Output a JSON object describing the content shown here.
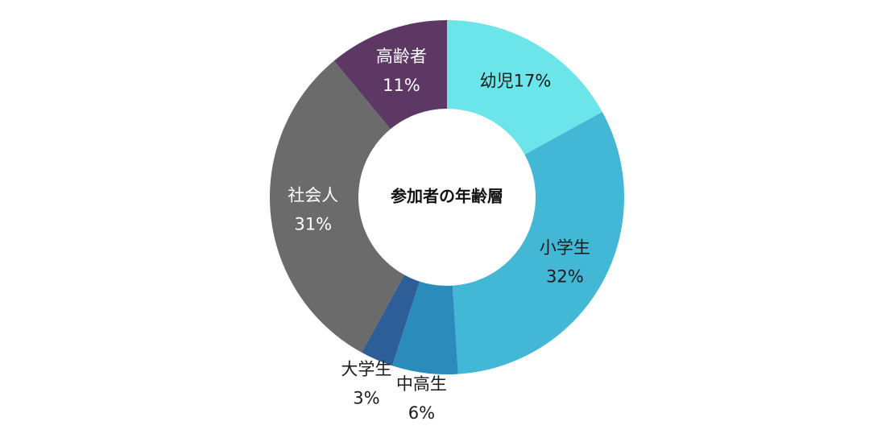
{
  "chart_data": {
    "type": "pie",
    "donut": true,
    "title": "参加者の年齢層",
    "unit": "%",
    "slices": [
      {
        "name": "幼児",
        "value": 17,
        "label": "幼児17%",
        "color": "#6BE5E9",
        "label_color": "#1a1a1a",
        "layout": "single"
      },
      {
        "name": "小学生",
        "value": 32,
        "label": "32%",
        "color": "#42B7D6",
        "label_color": "#1a1a1a",
        "layout": "double"
      },
      {
        "name": "中高生",
        "value": 6,
        "label": "6%",
        "color": "#2B8CBC",
        "label_color": "#1a1a1a",
        "layout": "outside"
      },
      {
        "name": "大学生",
        "value": 3,
        "label": "3%",
        "color": "#2E5E98",
        "label_color": "#1a1a1a",
        "layout": "outside"
      },
      {
        "name": "社会人",
        "value": 31,
        "label": "31%",
        "color": "#6B6B6B",
        "label_color": "#ffffff",
        "layout": "double"
      },
      {
        "name": "高齢者",
        "value": 11,
        "label": "11%",
        "color": "#5E3865",
        "label_color": "#ffffff",
        "layout": "double"
      }
    ]
  }
}
